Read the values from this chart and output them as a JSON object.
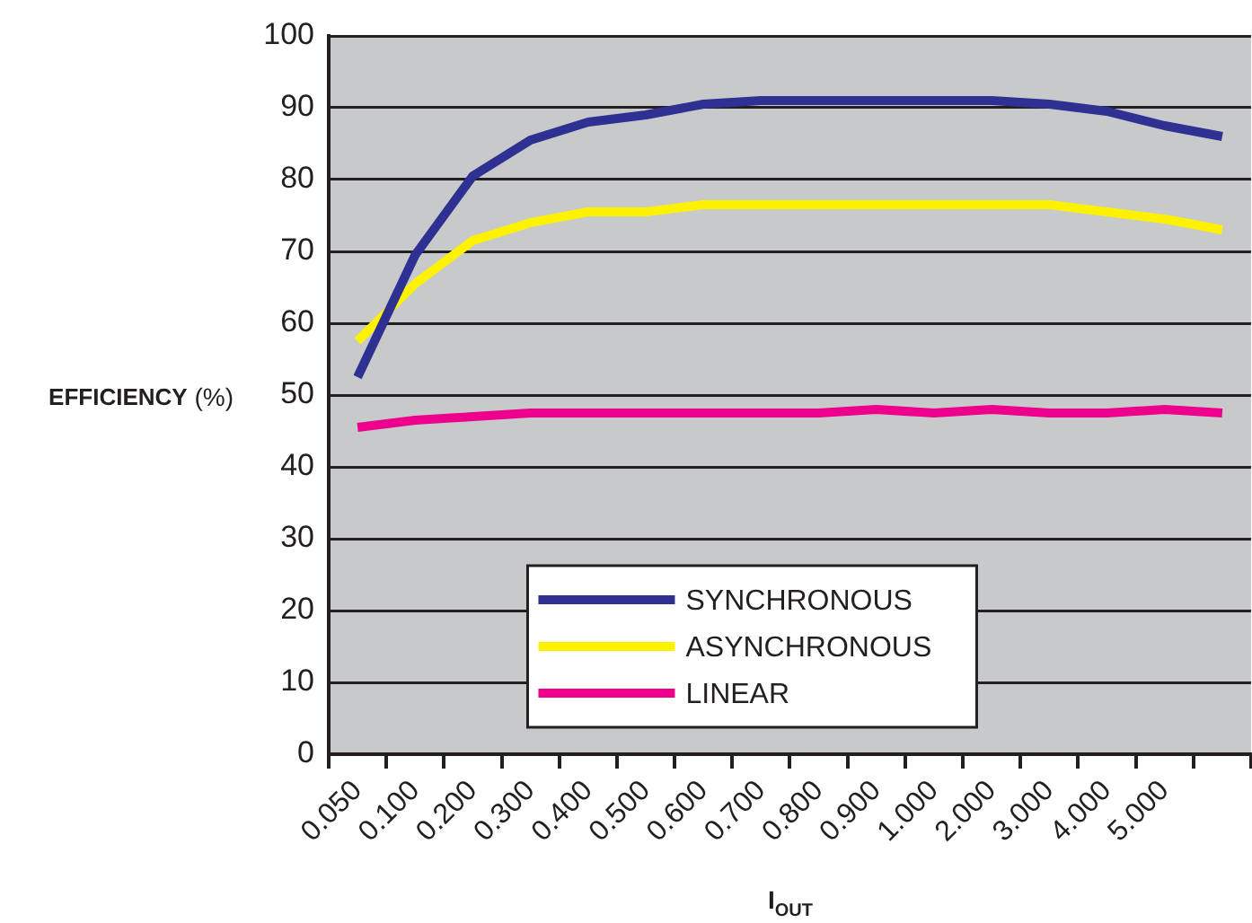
{
  "chart_data": {
    "type": "line",
    "xlabel": "I$_{OUT}$",
    "ylabel": "EFFICIENCY (%)",
    "categories": [
      "0.050",
      "0.100",
      "0.200",
      "0.300",
      "0.400",
      "0.500",
      "0.600",
      "0.700",
      "0.800",
      "0.900",
      "1.000",
      "2.000",
      "3.000",
      "4.000",
      "5.000",
      null
    ],
    "series": [
      {
        "name": "SYNCHRONOUS",
        "color": "#2e3192",
        "values": [
          52.5,
          69.5,
          80.5,
          85.5,
          88,
          89,
          90.5,
          91,
          91,
          91,
          91,
          91,
          90.5,
          89.5,
          87.5,
          86
        ]
      },
      {
        "name": "ASYNCHRONOUS",
        "color": "#fff200",
        "values": [
          57.5,
          65.5,
          71.5,
          74,
          75.5,
          75.5,
          76.5,
          76.5,
          76.5,
          76.5,
          76.5,
          76.5,
          76.5,
          75.5,
          74.5,
          73
        ]
      },
      {
        "name": "LINEAR",
        "color": "#ec008c",
        "values": [
          45.5,
          46.5,
          47,
          47.5,
          47.5,
          47.5,
          47.5,
          47.5,
          47.5,
          48,
          47.5,
          48,
          47.5,
          47.5,
          48,
          47.5
        ]
      }
    ],
    "ylim": [
      0,
      100
    ],
    "yticks": [
      0,
      10,
      20,
      30,
      40,
      50,
      60,
      70,
      80,
      90,
      100
    ],
    "grid": "y",
    "legend": "bottom",
    "marker": "none",
    "line_style": "solid"
  }
}
